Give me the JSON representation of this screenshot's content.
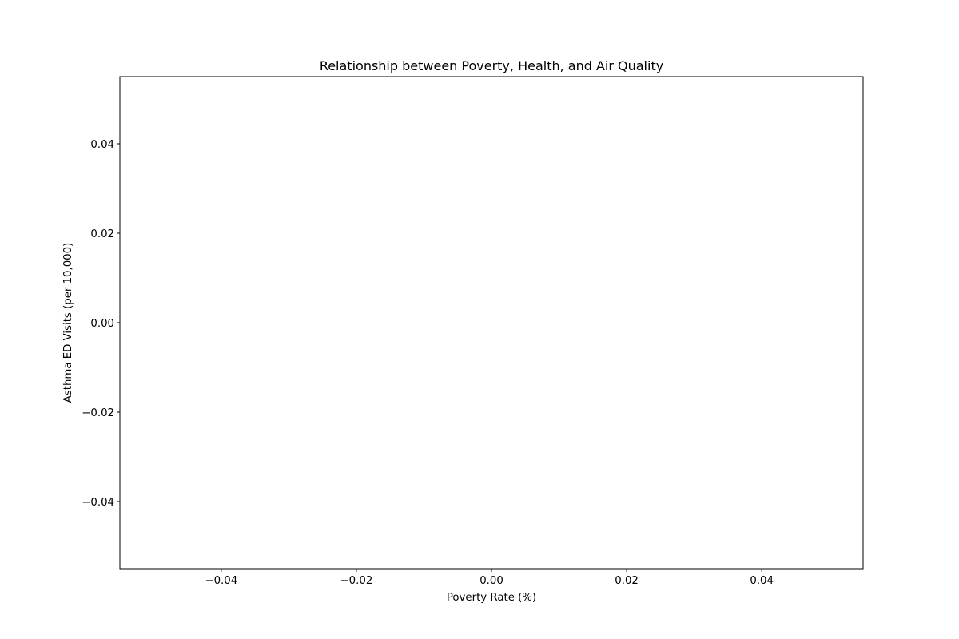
{
  "chart_data": {
    "type": "scatter",
    "title": "Relationship between Poverty, Health, and Air Quality",
    "xlabel": "Poverty Rate (%)",
    "ylabel": "Asthma ED Visits (per 10,000)",
    "xlim": [
      -0.055,
      0.055
    ],
    "ylim": [
      -0.055,
      0.055
    ],
    "xticks": [
      -0.04,
      -0.02,
      0.0,
      0.02,
      0.04
    ],
    "xtick_labels": [
      "−0.04",
      "−0.02",
      "0.00",
      "0.02",
      "0.04"
    ],
    "yticks": [
      -0.04,
      -0.02,
      0.0,
      0.02,
      0.04
    ],
    "ytick_labels": [
      "−0.04",
      "−0.02",
      "0.00",
      "0.02",
      "0.04"
    ],
    "grid": false,
    "series": [
      {
        "x": [],
        "y": []
      }
    ]
  }
}
